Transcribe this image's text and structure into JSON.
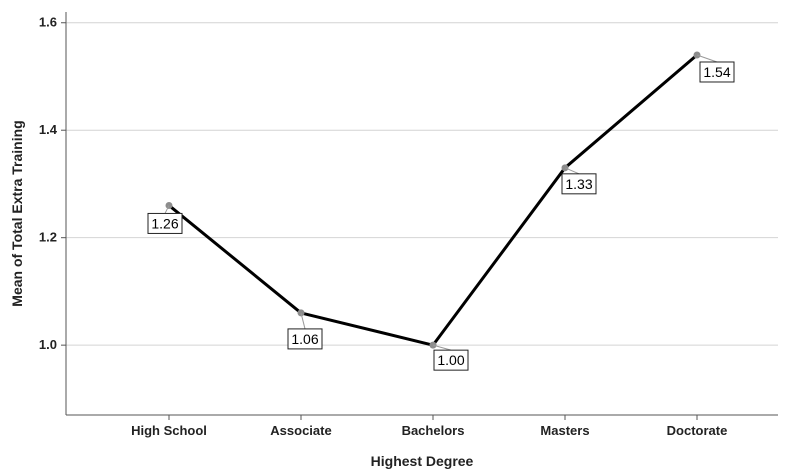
{
  "chart_data": {
    "type": "line",
    "categories": [
      "High School",
      "Associate",
      "Bachelors",
      "Masters",
      "Doctorate"
    ],
    "values": [
      1.26,
      1.06,
      1.0,
      1.33,
      1.54
    ],
    "data_labels": [
      "1.26",
      "1.06",
      "1.00",
      "1.33",
      "1.54"
    ],
    "xlabel": "Highest Degree",
    "ylabel": "Mean of Total Extra Training",
    "ylim": [
      0.87,
      1.62
    ],
    "yticks": [
      1.0,
      1.2,
      1.4,
      1.6
    ],
    "ytick_labels": [
      "1.0",
      "1.2",
      "1.4",
      "1.6"
    ],
    "grid": "horizontal",
    "line_color": "#000000",
    "marker_color": "#8c8c8c",
    "grid_color": "#d4d4d4"
  }
}
